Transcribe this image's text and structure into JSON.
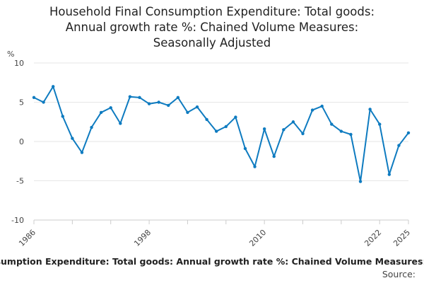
{
  "chart_data": {
    "type": "line",
    "title_lines": [
      "Household Final Consumption Expenditure: Total goods:",
      "Annual growth rate %: Chained Volume Measures:",
      "Seasonally Adjusted"
    ],
    "ylabel": "%",
    "xlabel": "",
    "ylim": [
      -10,
      10
    ],
    "yticks": [
      10,
      5,
      0,
      -5,
      -10
    ],
    "xlim": [
      1986,
      2025
    ],
    "xtick_labels": [
      1986,
      1998,
      2010,
      2022,
      2025
    ],
    "grid": "horizontal",
    "line_color": "#0e7bc0",
    "series": [
      {
        "name": "Household Final Consumption Expenditure: Total goods: Annual growth rate %: Chained Volume Measures: Seasonally Adjusted",
        "x": [
          1986,
          1987,
          1988,
          1989,
          1990,
          1991,
          1992,
          1993,
          1994,
          1995,
          1996,
          1997,
          1998,
          1999,
          2000,
          2001,
          2002,
          2003,
          2004,
          2005,
          2006,
          2007,
          2008,
          2009,
          2010,
          2011,
          2012,
          2013,
          2014,
          2015,
          2016,
          2017,
          2018,
          2019,
          2020,
          2021,
          2022,
          2023,
          2024,
          2025
        ],
        "values": [
          5.6,
          5.0,
          7.0,
          3.2,
          0.4,
          -1.4,
          1.8,
          3.7,
          4.3,
          2.3,
          5.7,
          5.6,
          4.8,
          5.0,
          4.6,
          5.6,
          3.7,
          4.4,
          2.8,
          1.3,
          1.9,
          3.1,
          -0.9,
          -3.2,
          1.6,
          -1.9,
          1.5,
          2.5,
          1.0,
          4.0,
          4.5,
          2.2,
          1.3,
          0.9,
          -5.1,
          4.1,
          2.2,
          -4.2,
          -0.5,
          1.1
        ]
      }
    ]
  },
  "legend_text": "Household Final Consumption Expenditure: Total goods: Annual growth rate %: Chained Volume Measures: Seasonally Adjusted",
  "source_label": "Source:"
}
